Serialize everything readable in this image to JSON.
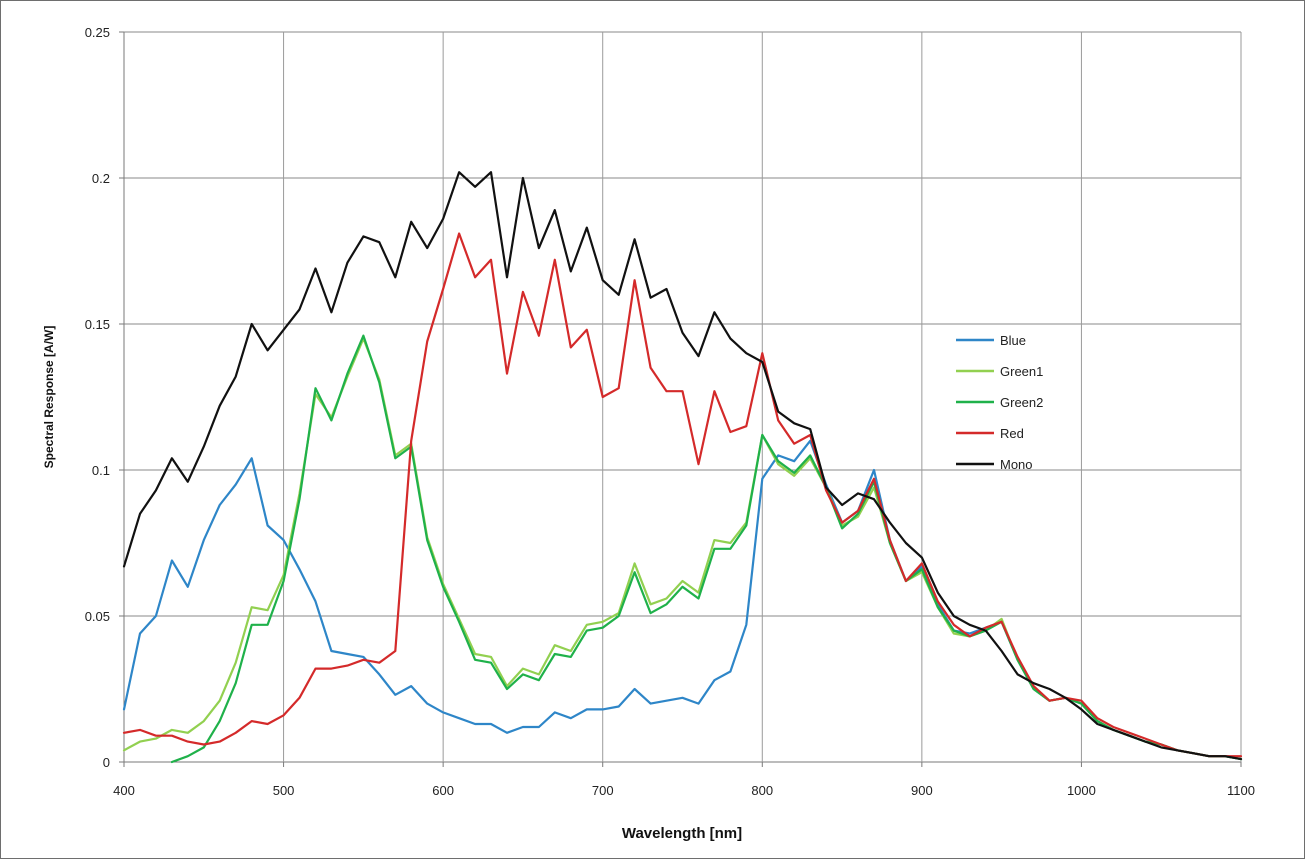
{
  "chart_data": {
    "type": "line",
    "title": "",
    "xlabel": "Wavelength [nm]",
    "ylabel": "Spectral Response [A/W]",
    "xlim": [
      400,
      1100
    ],
    "ylim": [
      0,
      0.25
    ],
    "x_ticks": [
      "400",
      "500",
      "600",
      "700",
      "800",
      "900",
      "1000",
      "1100"
    ],
    "y_ticks": [
      "0",
      "0.05",
      "0.1",
      "0.15",
      "0.2",
      "0.25"
    ],
    "grid": true,
    "legend_position": "right",
    "x": [
      400,
      410,
      420,
      430,
      440,
      450,
      460,
      470,
      480,
      490,
      500,
      510,
      520,
      530,
      540,
      550,
      560,
      570,
      580,
      590,
      600,
      610,
      620,
      630,
      640,
      650,
      660,
      670,
      680,
      690,
      700,
      710,
      720,
      730,
      740,
      750,
      760,
      770,
      780,
      790,
      800,
      810,
      820,
      830,
      840,
      850,
      860,
      870,
      880,
      890,
      900,
      910,
      920,
      930,
      940,
      950,
      960,
      970,
      980,
      990,
      1000,
      1010,
      1020,
      1030,
      1040,
      1050,
      1060,
      1070,
      1080,
      1090,
      1100
    ],
    "series": [
      {
        "name": "Blue",
        "color": "#2e86c8",
        "values": [
          0.018,
          0.044,
          0.05,
          0.069,
          0.06,
          0.076,
          0.088,
          0.095,
          0.104,
          0.081,
          0.076,
          0.066,
          0.055,
          0.038,
          0.037,
          0.036,
          0.03,
          0.023,
          0.026,
          0.02,
          0.017,
          0.015,
          0.013,
          0.013,
          0.01,
          0.012,
          0.012,
          0.017,
          0.015,
          0.018,
          0.018,
          0.019,
          0.025,
          0.02,
          0.021,
          0.022,
          0.02,
          0.028,
          0.031,
          0.047,
          0.097,
          0.105,
          0.103,
          0.11,
          0.095,
          0.082,
          0.086,
          0.1,
          0.076,
          0.062,
          0.067,
          0.054,
          0.045,
          0.044,
          0.046,
          0.048,
          0.035,
          0.025,
          0.021,
          0.022,
          0.02,
          0.014,
          0.011,
          0.009,
          0.007,
          0.006,
          0.004,
          0.003,
          0.002,
          0.002,
          0.001
        ]
      },
      {
        "name": "Green1",
        "color": "#92d050",
        "values": [
          0.004,
          0.007,
          0.008,
          0.011,
          0.01,
          0.014,
          0.021,
          0.034,
          0.053,
          0.052,
          0.064,
          0.092,
          0.126,
          0.118,
          0.132,
          0.145,
          0.131,
          0.105,
          0.109,
          0.077,
          0.061,
          0.049,
          0.037,
          0.036,
          0.026,
          0.032,
          0.03,
          0.04,
          0.038,
          0.047,
          0.048,
          0.051,
          0.068,
          0.054,
          0.056,
          0.062,
          0.058,
          0.076,
          0.075,
          0.082,
          0.112,
          0.102,
          0.098,
          0.104,
          0.094,
          0.081,
          0.084,
          0.094,
          0.075,
          0.062,
          0.065,
          0.053,
          0.044,
          0.043,
          0.045,
          0.049,
          0.035,
          0.025,
          0.021,
          0.022,
          0.02,
          0.014,
          0.011,
          0.009,
          0.007,
          0.006,
          0.004,
          0.003,
          0.002,
          0.002,
          0.001
        ]
      },
      {
        "name": "Green2",
        "color": "#1fb14a",
        "values": [
          null,
          null,
          null,
          0.0,
          0.002,
          0.005,
          0.014,
          0.027,
          0.047,
          0.047,
          0.062,
          0.09,
          0.128,
          0.117,
          0.133,
          0.146,
          0.13,
          0.104,
          0.108,
          0.076,
          0.06,
          0.048,
          0.035,
          0.034,
          0.025,
          0.03,
          0.028,
          0.037,
          0.036,
          0.045,
          0.046,
          0.05,
          0.065,
          0.051,
          0.054,
          0.06,
          0.056,
          0.073,
          0.073,
          0.081,
          0.112,
          0.103,
          0.099,
          0.105,
          0.094,
          0.08,
          0.085,
          0.096,
          0.075,
          0.062,
          0.066,
          0.053,
          0.045,
          0.043,
          0.045,
          0.048,
          0.035,
          0.025,
          0.021,
          0.022,
          0.02,
          0.014,
          0.011,
          0.009,
          0.007,
          0.006,
          0.004,
          0.003,
          0.002,
          0.002,
          0.001
        ]
      },
      {
        "name": "Red",
        "color": "#d42a2a",
        "values": [
          0.01,
          0.011,
          0.009,
          0.009,
          0.007,
          0.006,
          0.007,
          0.01,
          0.014,
          0.013,
          0.016,
          0.022,
          0.032,
          0.032,
          0.033,
          0.035,
          0.034,
          0.038,
          0.11,
          0.144,
          0.162,
          0.181,
          0.166,
          0.172,
          0.133,
          0.161,
          0.146,
          0.172,
          0.142,
          0.148,
          0.125,
          0.128,
          0.165,
          0.135,
          0.127,
          0.127,
          0.102,
          0.127,
          0.113,
          0.115,
          0.14,
          0.117,
          0.109,
          0.112,
          0.093,
          0.082,
          0.086,
          0.097,
          0.076,
          0.062,
          0.068,
          0.055,
          0.047,
          0.043,
          0.046,
          0.048,
          0.036,
          0.026,
          0.021,
          0.022,
          0.021,
          0.015,
          0.012,
          0.01,
          0.008,
          0.006,
          0.004,
          0.003,
          0.002,
          0.002,
          0.002
        ]
      },
      {
        "name": "Mono",
        "color": "#111111",
        "values": [
          0.067,
          0.085,
          0.093,
          0.104,
          0.096,
          0.108,
          0.122,
          0.132,
          0.15,
          0.141,
          0.148,
          0.155,
          0.169,
          0.154,
          0.171,
          0.18,
          0.178,
          0.166,
          0.185,
          0.176,
          0.186,
          0.202,
          0.197,
          0.202,
          0.166,
          0.2,
          0.176,
          0.189,
          0.168,
          0.183,
          0.165,
          0.16,
          0.179,
          0.159,
          0.162,
          0.147,
          0.139,
          0.154,
          0.145,
          0.14,
          0.137,
          0.12,
          0.116,
          0.114,
          0.094,
          0.088,
          0.092,
          0.09,
          0.082,
          0.075,
          0.07,
          0.058,
          0.05,
          0.047,
          0.045,
          0.038,
          0.03,
          0.027,
          0.025,
          0.022,
          0.018,
          0.013,
          0.011,
          0.009,
          0.007,
          0.005,
          0.004,
          0.003,
          0.002,
          0.002,
          0.001
        ]
      }
    ]
  }
}
